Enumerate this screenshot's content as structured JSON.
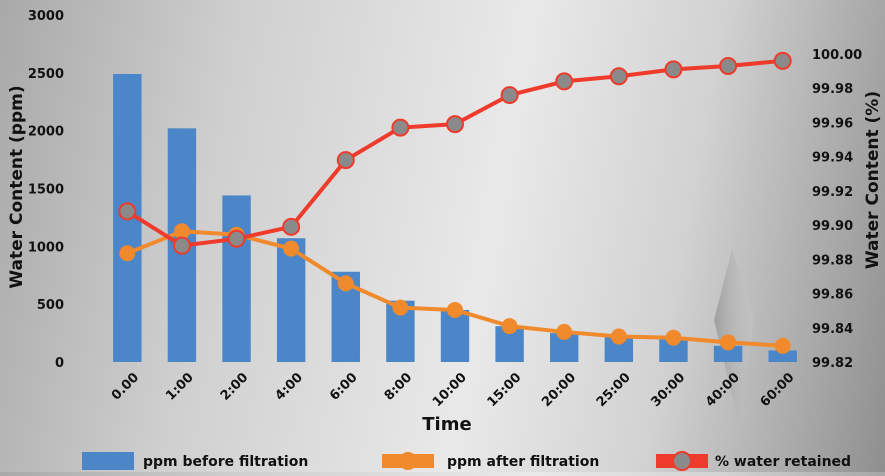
{
  "chart_data": {
    "type": "bar",
    "categories": [
      "0.00",
      "1:00",
      "2:00",
      "4:00",
      "6:00",
      "8:00",
      "10:00",
      "15:00",
      "20:00",
      "25:00",
      "30:00",
      "40:00",
      "60:00"
    ],
    "xlabel": "Time",
    "ylabel": "Water Content (ppm)",
    "y2label": "Water Content (%)",
    "ylim": [
      0,
      3000
    ],
    "y2lim": [
      99.82,
      100.0
    ],
    "yticks": [
      "0",
      "500",
      "1000",
      "1500",
      "2000",
      "2500",
      "3000"
    ],
    "y2ticks": [
      "99.82",
      "99.84",
      "99.86",
      "99.88",
      "99.90",
      "99.92",
      "99.94",
      "99.96",
      "99.98",
      "100.00"
    ],
    "grid": false,
    "legend_position": "bottom",
    "series": [
      {
        "name": "ppm before filtration",
        "type": "bar",
        "axis": "left",
        "color": "#4a86c8",
        "values": [
          2490,
          2020,
          1440,
          1070,
          780,
          530,
          450,
          310,
          250,
          220,
          210,
          140,
          100
        ]
      },
      {
        "name": "ppm after filtration",
        "type": "line",
        "axis": "left",
        "color": "#f08a2c",
        "values": [
          940,
          1130,
          1100,
          980,
          680,
          470,
          450,
          310,
          260,
          220,
          210,
          170,
          140
        ]
      },
      {
        "name": "% water retained",
        "type": "line",
        "axis": "right",
        "color": "#ee3b2b",
        "marker_color": "#8a8a8a",
        "values": [
          99.908,
          99.888,
          99.892,
          99.899,
          99.938,
          99.957,
          99.959,
          99.976,
          99.984,
          99.987,
          99.991,
          99.993,
          99.996
        ]
      }
    ]
  }
}
